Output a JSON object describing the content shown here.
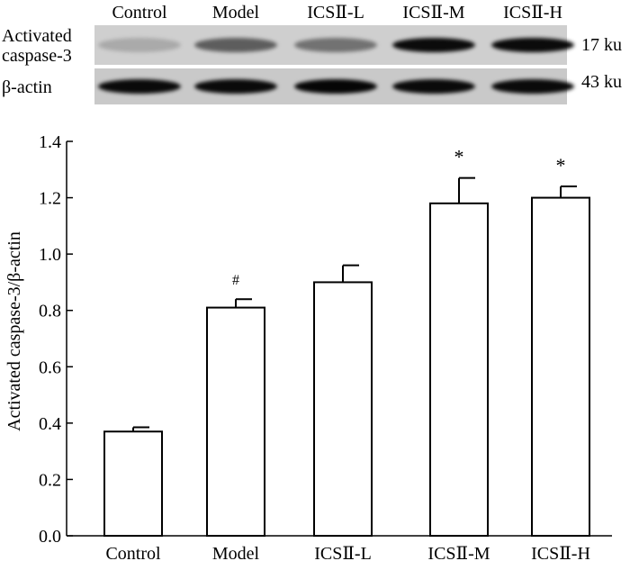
{
  "blot": {
    "lanes": [
      "Control",
      "Model",
      "ICSⅡ-L",
      "ICSⅡ-M",
      "ICSⅡ-H"
    ],
    "rows": [
      {
        "label_lines": [
          "Activated",
          "caspase-3"
        ],
        "size": "17 ku",
        "intensity": [
          0.18,
          0.55,
          0.45,
          0.95,
          0.95
        ]
      },
      {
        "label_lines": [
          "β-actin"
        ],
        "size": "43 ku",
        "intensity": [
          0.95,
          0.95,
          0.97,
          0.95,
          0.95
        ]
      }
    ]
  },
  "chart_data": {
    "type": "bar",
    "title": "",
    "xlabel": "",
    "ylabel": "Activated caspase-3/β-actin",
    "categories": [
      "Control",
      "Model",
      "ICSⅡ-L",
      "ICSⅡ-M",
      "ICSⅡ-H"
    ],
    "values": [
      0.37,
      0.81,
      0.9,
      1.18,
      1.2
    ],
    "errors": [
      0.015,
      0.03,
      0.06,
      0.09,
      0.04
    ],
    "annotations": [
      "",
      "#",
      "",
      "*",
      "*"
    ],
    "ylim": [
      0.0,
      1.4
    ],
    "yticks": [
      "0.0",
      "0.2",
      "0.4",
      "0.6",
      "0.8",
      "1.0",
      "1.2",
      "1.4"
    ],
    "grid": false,
    "legend": "none",
    "bar_fill": "#ffffff",
    "bar_edge": "#000000"
  }
}
